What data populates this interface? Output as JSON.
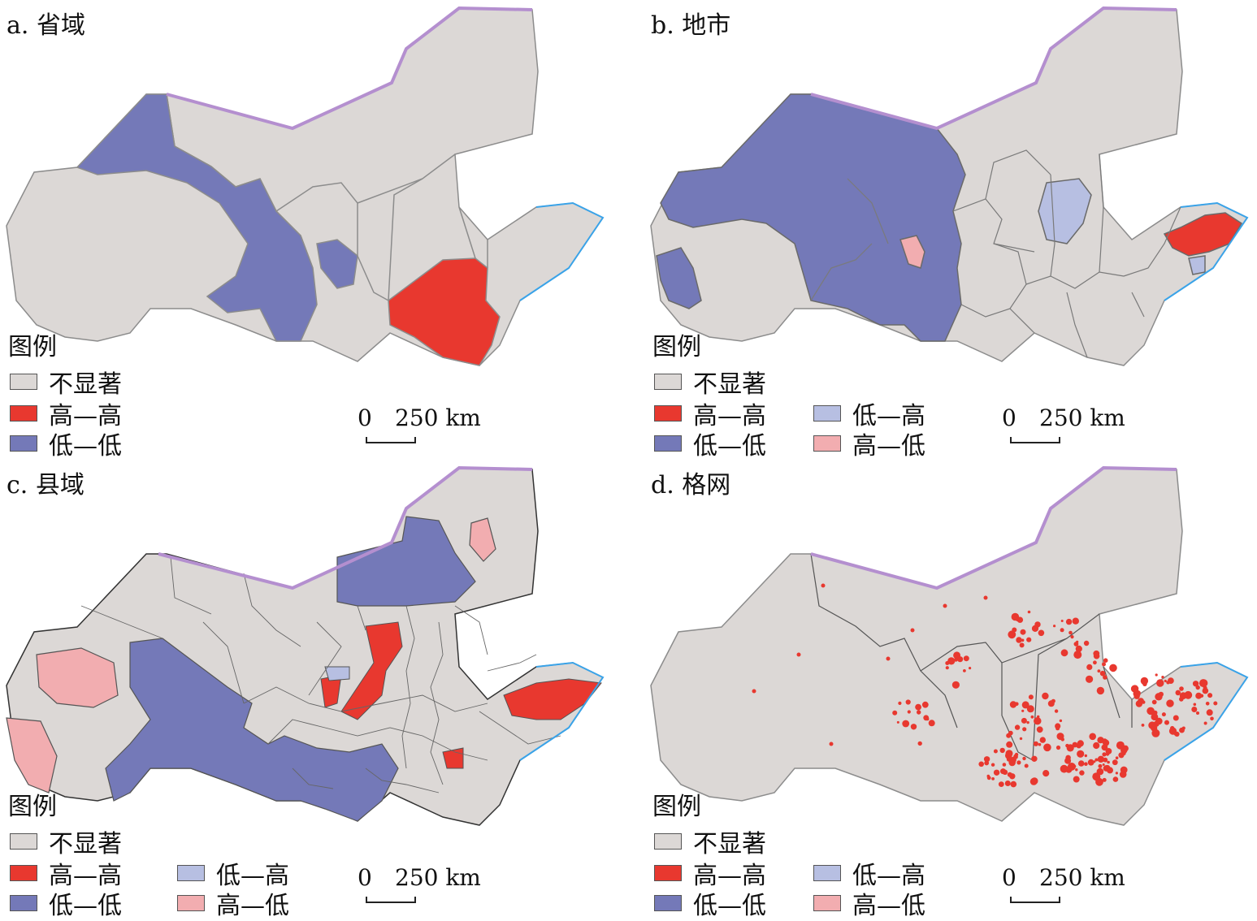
{
  "colors": {
    "not_significant": "#dcd8d6",
    "high_high": "#e8382f",
    "low_low": "#7479b8",
    "low_high": "#b7bfe2",
    "high_low": "#f2adb0",
    "border_line": "#8c8c8c",
    "national_border": "#b48fcf",
    "coast": "#3aa3e8"
  },
  "panels": [
    {
      "id": "a",
      "title": "a. 省域",
      "legend_title": "图例",
      "legend": [
        {
          "key": "not_significant",
          "label": "不显著"
        },
        {
          "key": "high_high",
          "label": "高—高"
        },
        {
          "key": "low_low",
          "label": "低—低"
        }
      ],
      "scale": {
        "zero": "0",
        "distance": "250 km"
      }
    },
    {
      "id": "b",
      "title": "b. 地市",
      "legend_title": "图例",
      "legend": [
        {
          "key": "not_significant",
          "label": "不显著"
        },
        {
          "key": "high_high",
          "label": "高—高"
        },
        {
          "key": "low_low",
          "label": "低—低"
        },
        {
          "key": "low_high",
          "label": "低—高"
        },
        {
          "key": "high_low",
          "label": "高—低"
        }
      ],
      "scale": {
        "zero": "0",
        "distance": "250 km"
      }
    },
    {
      "id": "c",
      "title": "c. 县域",
      "legend_title": "图例",
      "legend": [
        {
          "key": "not_significant",
          "label": "不显著"
        },
        {
          "key": "high_high",
          "label": "高—高"
        },
        {
          "key": "low_low",
          "label": "低—低"
        },
        {
          "key": "low_high",
          "label": "低—高"
        },
        {
          "key": "high_low",
          "label": "高—低"
        }
      ],
      "scale": {
        "zero": "0",
        "distance": "250 km"
      }
    },
    {
      "id": "d",
      "title": "d. 格网",
      "legend_title": "图例",
      "legend": [
        {
          "key": "not_significant",
          "label": "不显著"
        },
        {
          "key": "high_high",
          "label": "高—高"
        },
        {
          "key": "low_low",
          "label": "低—低"
        },
        {
          "key": "low_high",
          "label": "低—高"
        },
        {
          "key": "high_low",
          "label": "高—低"
        }
      ],
      "scale": {
        "zero": "0",
        "distance": "250 km"
      }
    }
  ]
}
